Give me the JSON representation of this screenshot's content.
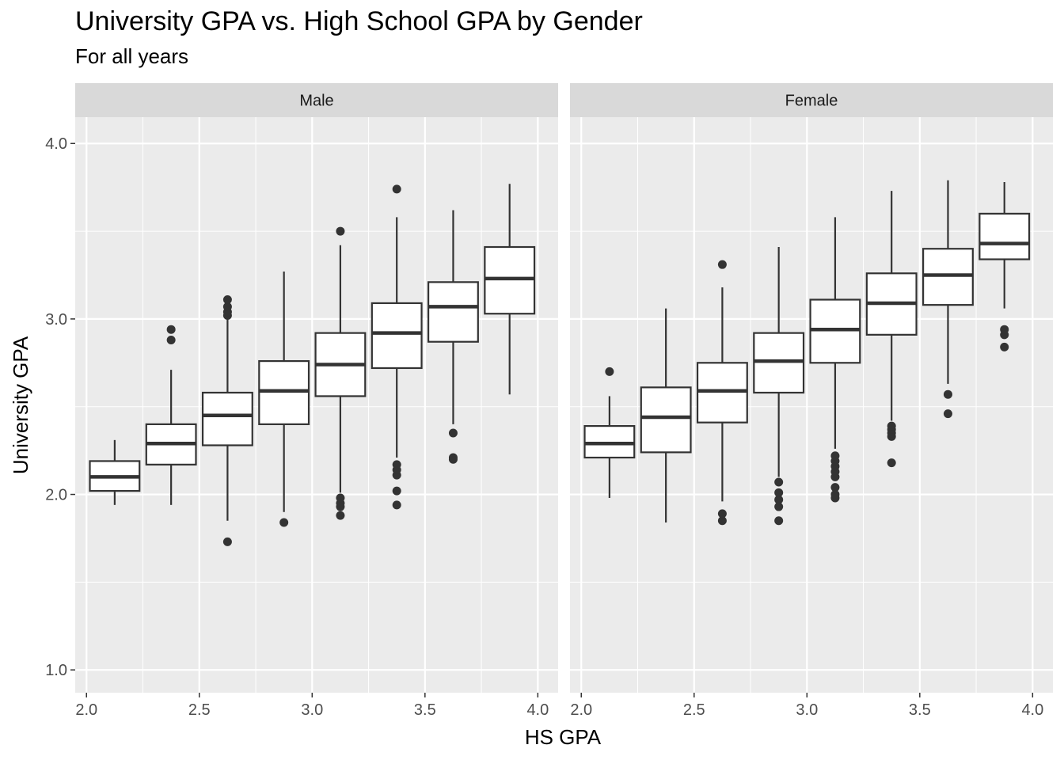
{
  "chart_data": {
    "type": "box",
    "title": "University GPA vs. High School GPA by Gender",
    "subtitle": "For all years",
    "xlabel": "HS GPA",
    "ylabel": "University GPA",
    "xlim": [
      1.95,
      4.09
    ],
    "ylim": [
      0.87,
      4.15
    ],
    "x_ticks": [
      2.0,
      2.5,
      3.0,
      3.5,
      4.0
    ],
    "x_tick_labels": [
      "2.0",
      "2.5",
      "3.0",
      "3.5",
      "4.0"
    ],
    "y_ticks": [
      1.0,
      2.0,
      3.0,
      4.0
    ],
    "y_tick_labels": [
      "1.0",
      "2.0",
      "3.0",
      "4.0"
    ],
    "grid": true,
    "box_width": 0.22,
    "panels": [
      {
        "label": "Male",
        "boxes": [
          {
            "x": 2.125,
            "lower_whisker": 1.94,
            "q1": 2.02,
            "median": 2.1,
            "q3": 2.19,
            "upper_whisker": 2.31,
            "outliers": []
          },
          {
            "x": 2.375,
            "lower_whisker": 1.94,
            "q1": 2.17,
            "median": 2.29,
            "q3": 2.4,
            "upper_whisker": 2.71,
            "outliers": [
              2.88,
              2.94
            ]
          },
          {
            "x": 2.625,
            "lower_whisker": 1.85,
            "q1": 2.28,
            "median": 2.45,
            "q3": 2.58,
            "upper_whisker": 3.0,
            "outliers": [
              1.73,
              3.02,
              3.04,
              3.07,
              3.11
            ]
          },
          {
            "x": 2.875,
            "lower_whisker": 1.9,
            "q1": 2.4,
            "median": 2.59,
            "q3": 2.76,
            "upper_whisker": 3.27,
            "outliers": [
              1.84
            ]
          },
          {
            "x": 3.125,
            "lower_whisker": 2.01,
            "q1": 2.56,
            "median": 2.74,
            "q3": 2.92,
            "upper_whisker": 3.42,
            "outliers": [
              1.88,
              1.93,
              1.95,
              1.98,
              3.5
            ]
          },
          {
            "x": 3.375,
            "lower_whisker": 2.21,
            "q1": 2.72,
            "median": 2.92,
            "q3": 3.09,
            "upper_whisker": 3.58,
            "outliers": [
              1.94,
              2.02,
              2.11,
              2.14,
              2.17,
              3.74
            ]
          },
          {
            "x": 3.625,
            "lower_whisker": 2.4,
            "q1": 2.87,
            "median": 3.07,
            "q3": 3.21,
            "upper_whisker": 3.62,
            "outliers": [
              2.2,
              2.21,
              2.35
            ]
          },
          {
            "x": 3.875,
            "lower_whisker": 2.57,
            "q1": 3.03,
            "median": 3.23,
            "q3": 3.41,
            "upper_whisker": 3.77,
            "outliers": []
          }
        ]
      },
      {
        "label": "Female",
        "boxes": [
          {
            "x": 2.125,
            "lower_whisker": 1.98,
            "q1": 2.21,
            "median": 2.29,
            "q3": 2.39,
            "upper_whisker": 2.56,
            "outliers": [
              2.7
            ]
          },
          {
            "x": 2.375,
            "lower_whisker": 1.84,
            "q1": 2.24,
            "median": 2.44,
            "q3": 2.61,
            "upper_whisker": 3.06,
            "outliers": []
          },
          {
            "x": 2.625,
            "lower_whisker": 1.96,
            "q1": 2.41,
            "median": 2.59,
            "q3": 2.75,
            "upper_whisker": 3.18,
            "outliers": [
              1.85,
              1.89,
              3.31
            ]
          },
          {
            "x": 2.875,
            "lower_whisker": 2.1,
            "q1": 2.58,
            "median": 2.76,
            "q3": 2.92,
            "upper_whisker": 3.41,
            "outliers": [
              1.85,
              1.93,
              1.97,
              2.01,
              2.07
            ]
          },
          {
            "x": 3.125,
            "lower_whisker": 2.26,
            "q1": 2.75,
            "median": 2.94,
            "q3": 3.11,
            "upper_whisker": 3.58,
            "outliers": [
              1.98,
              2.0,
              2.04,
              2.1,
              2.13,
              2.16,
              2.19,
              2.22
            ]
          },
          {
            "x": 3.375,
            "lower_whisker": 2.42,
            "q1": 2.91,
            "median": 3.09,
            "q3": 3.26,
            "upper_whisker": 3.73,
            "outliers": [
              2.18,
              2.33,
              2.35,
              2.37,
              2.39
            ]
          },
          {
            "x": 3.625,
            "lower_whisker": 2.63,
            "q1": 3.08,
            "median": 3.25,
            "q3": 3.4,
            "upper_whisker": 3.79,
            "outliers": [
              2.46,
              2.57
            ]
          },
          {
            "x": 3.875,
            "lower_whisker": 3.06,
            "q1": 3.34,
            "median": 3.43,
            "q3": 3.6,
            "upper_whisker": 3.78,
            "outliers": [
              2.84,
              2.91,
              2.94
            ]
          }
        ]
      }
    ]
  }
}
